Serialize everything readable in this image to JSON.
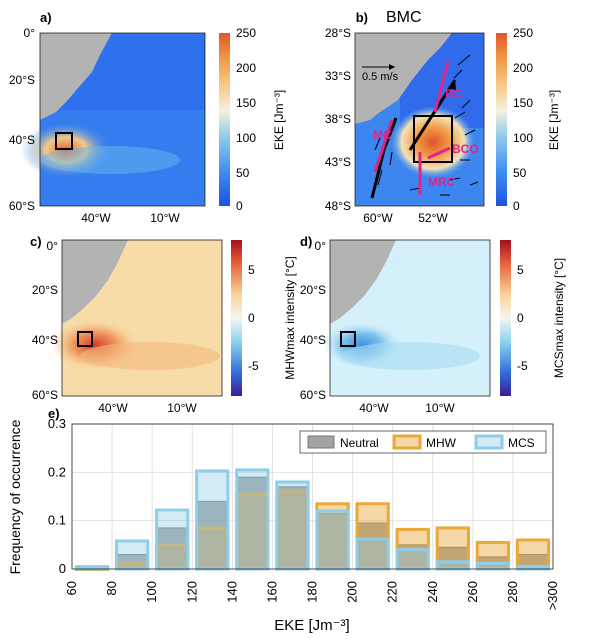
{
  "panels": {
    "a": {
      "label": "a)",
      "lat_ticks": [
        "0°",
        "20°S",
        "40°S",
        "60°S"
      ],
      "lon_ticks": [
        "40°W",
        "10°W"
      ],
      "colorbar_label": "EKE [Jm⁻³]",
      "colorbar_ticks": [
        "250",
        "200",
        "150",
        "100",
        "50",
        "0"
      ]
    },
    "b": {
      "label": "b)",
      "title": "BMC",
      "lat_ticks": [
        "28°S",
        "33°S",
        "38°S",
        "43°S",
        "48°S"
      ],
      "lon_ticks": [
        "60°W",
        "52°W"
      ],
      "scale_label": "0.5 m/s",
      "currents": [
        "BC",
        "MC",
        "BCO",
        "MRC"
      ],
      "colorbar_label": "EKE [Jm⁻³]",
      "colorbar_ticks": [
        "250",
        "200",
        "150",
        "100",
        "50",
        "0"
      ]
    },
    "c": {
      "label": "c)",
      "lat_ticks": [
        "0°",
        "20°S",
        "40°S",
        "60°S"
      ],
      "lon_ticks": [
        "40°W",
        "10°W"
      ],
      "colorbar_label": "MHWmax intensity [°C]",
      "colorbar_ticks": [
        "5",
        "0",
        "-5"
      ]
    },
    "d": {
      "label": "d)",
      "lat_ticks": [
        "0°",
        "20°S",
        "40°S",
        "60°S"
      ],
      "lon_ticks": [
        "40°W",
        "10°W"
      ],
      "colorbar_label": "MCSmax intensity [°C]",
      "colorbar_ticks": [
        "5",
        "0",
        "-5"
      ]
    }
  },
  "colors": {
    "neutral": "#8c8c8c",
    "mhw": "#e8a93a",
    "mcs": "#8fcde8",
    "land": "#b3b3b3",
    "box": "#000000",
    "current_arrows": "#e0248e"
  },
  "chart_data": [
    {
      "type": "bar",
      "panel": "e)",
      "ylabel": "Frequency of occurrence",
      "xlabel": "EKE [Jm⁻³]",
      "ylim": [
        0,
        0.3
      ],
      "yticks": [
        "0",
        "0.1",
        "0.2",
        "0.3"
      ],
      "xtick_labels": [
        "60",
        "80",
        "100",
        "120",
        "140",
        "160",
        "180",
        "200",
        "220",
        "240",
        "260",
        "280",
        ">300"
      ],
      "categories": [
        "60-80",
        "80-100",
        "100-120",
        "120-140",
        "140-160",
        "160-180",
        "180-200",
        "200-220",
        "220-240",
        "240-260",
        "260-280",
        ">280"
      ],
      "legend_position": "top-right",
      "grid": true,
      "series": [
        {
          "name": "Neutral",
          "values": [
            0.002,
            0.03,
            0.085,
            0.14,
            0.19,
            0.17,
            0.115,
            0.095,
            0.05,
            0.045,
            0.025,
            0.03
          ]
        },
        {
          "name": "MHW",
          "values": [
            0.0,
            0.012,
            0.05,
            0.085,
            0.155,
            0.16,
            0.135,
            0.135,
            0.082,
            0.085,
            0.055,
            0.06
          ]
        },
        {
          "name": "MCS",
          "values": [
            0.005,
            0.058,
            0.122,
            0.203,
            0.205,
            0.18,
            0.12,
            0.062,
            0.04,
            0.015,
            0.012,
            0.005
          ]
        }
      ]
    }
  ]
}
